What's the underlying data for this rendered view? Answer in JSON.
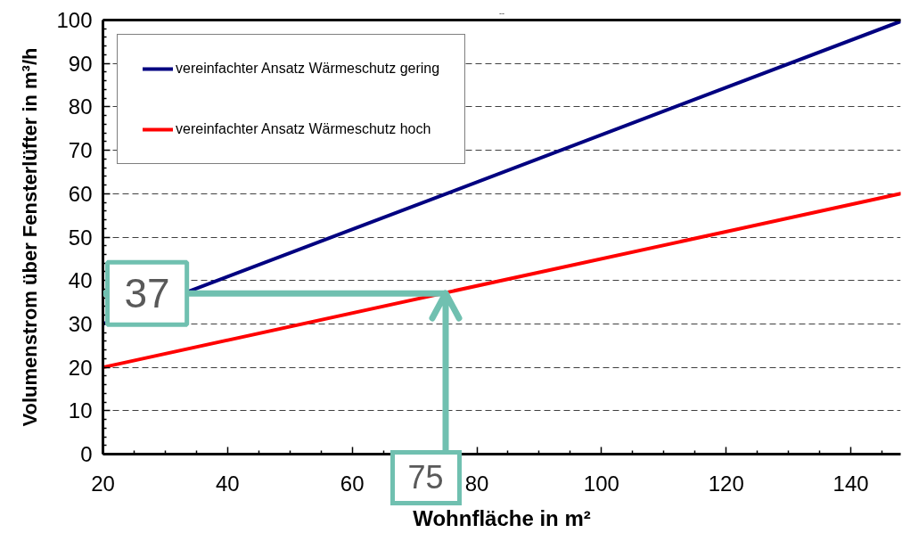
{
  "chart_data": {
    "type": "line",
    "title": "--",
    "xlabel": "Wohnfläche in m²",
    "ylabel": "Volumenstrom über Fensterlüfter in m³/h",
    "x": [
      20,
      148
    ],
    "series": [
      {
        "name": "vereinfachter Ansatz Wärmeschutz gering",
        "color": "#000080",
        "values": [
          30,
          99.7
        ]
      },
      {
        "name": "vereinfachter Ansatz Wärmeschutz hoch",
        "color": "#ff0000",
        "values": [
          20,
          60
        ]
      }
    ],
    "xlim": [
      20,
      148
    ],
    "ylim": [
      0,
      100
    ],
    "xticks": [
      20,
      {
        "value": 25,
        "label": null
      },
      {
        "value": 30,
        "label": null
      },
      {
        "value": 35,
        "label": null
      },
      40,
      {
        "value": 45,
        "label": null
      },
      {
        "value": 50,
        "label": null
      },
      {
        "value": 55,
        "label": null
      },
      60,
      {
        "value": 65,
        "label": null
      },
      {
        "value": 70,
        "label": null
      },
      {
        "value": 75,
        "label": null
      },
      80,
      {
        "value": 85,
        "label": null
      },
      {
        "value": 90,
        "label": null
      },
      {
        "value": 95,
        "label": null
      },
      100,
      {
        "value": 105,
        "label": null
      },
      {
        "value": 110,
        "label": null
      },
      {
        "value": 115,
        "label": null
      },
      120,
      {
        "value": 125,
        "label": null
      },
      {
        "value": 130,
        "label": null
      },
      {
        "value": 135,
        "label": null
      },
      140,
      {
        "value": 145,
        "label": null
      }
    ],
    "yticks": [
      0,
      {
        "value": 2,
        "label": null
      },
      {
        "value": 4,
        "label": null
      },
      {
        "value": 6,
        "label": null
      },
      {
        "value": 8,
        "label": null
      },
      10,
      {
        "value": 12,
        "label": null
      },
      {
        "value": 14,
        "label": null
      },
      {
        "value": 16,
        "label": null
      },
      {
        "value": 18,
        "label": null
      },
      20,
      {
        "value": 22,
        "label": null
      },
      {
        "value": 24,
        "label": null
      },
      {
        "value": 26,
        "label": null
      },
      {
        "value": 28,
        "label": null
      },
      30,
      {
        "value": 32,
        "label": null
      },
      {
        "value": 34,
        "label": null
      },
      {
        "value": 36,
        "label": null
      },
      {
        "value": 38,
        "label": null
      },
      40,
      {
        "value": 42,
        "label": null
      },
      {
        "value": 44,
        "label": null
      },
      {
        "value": 46,
        "label": null
      },
      {
        "value": 48,
        "label": null
      },
      50,
      {
        "value": 52,
        "label": null
      },
      {
        "value": 54,
        "label": null
      },
      {
        "value": 56,
        "label": null
      },
      {
        "value": 58,
        "label": null
      },
      60,
      {
        "value": 62,
        "label": null
      },
      {
        "value": 64,
        "label": null
      },
      {
        "value": 66,
        "label": null
      },
      {
        "value": 68,
        "label": null
      },
      70,
      {
        "value": 72,
        "label": null
      },
      {
        "value": 74,
        "label": null
      },
      {
        "value": 76,
        "label": null
      },
      {
        "value": 78,
        "label": null
      },
      80,
      {
        "value": 82,
        "label": null
      },
      {
        "value": 84,
        "label": null
      },
      {
        "value": 86,
        "label": null
      },
      {
        "value": 88,
        "label": null
      },
      90,
      {
        "value": 92,
        "label": null
      },
      {
        "value": 94,
        "label": null
      },
      {
        "value": 96,
        "label": null
      },
      {
        "value": 98,
        "label": null
      },
      100
    ],
    "grid": "y",
    "legend": "top left",
    "marker": "none",
    "line_style": "solid",
    "annotations": [
      {
        "text": "37",
        "x": 75,
        "y": 37
      },
      {
        "text": "75",
        "x": 75,
        "y": 37
      }
    ]
  }
}
